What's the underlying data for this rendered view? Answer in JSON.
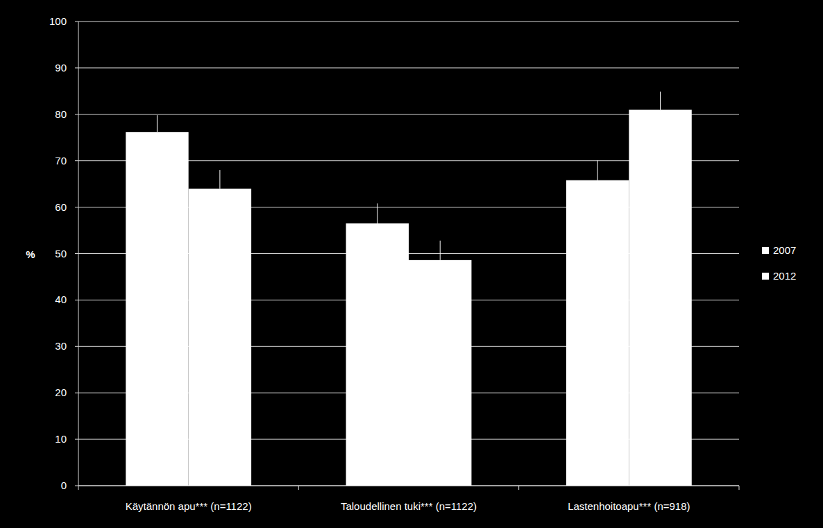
{
  "chart_data": {
    "type": "bar",
    "y_label": "%",
    "categories": [
      "Käytännön apu*** (n=1122)",
      "Taloudellinen tuki*** (n=1122)",
      "Lastenhoitoapu*** (n=918)"
    ],
    "series": [
      {
        "name": "2007",
        "color": "#ffffff",
        "values": [
          76.2,
          56.5,
          65.8
        ],
        "errors": [
          3.6,
          4.3,
          4.3
        ]
      },
      {
        "name": "2012",
        "color": "#ffffff",
        "values": [
          64.0,
          48.6,
          81.0
        ],
        "errors": [
          4.0,
          4.2,
          3.9
        ]
      }
    ],
    "ylim": [
      0,
      100
    ],
    "yticks": [
      0,
      10,
      20,
      30,
      40,
      50,
      60,
      70,
      80,
      90,
      100
    ],
    "grid": true,
    "legend": "right"
  }
}
